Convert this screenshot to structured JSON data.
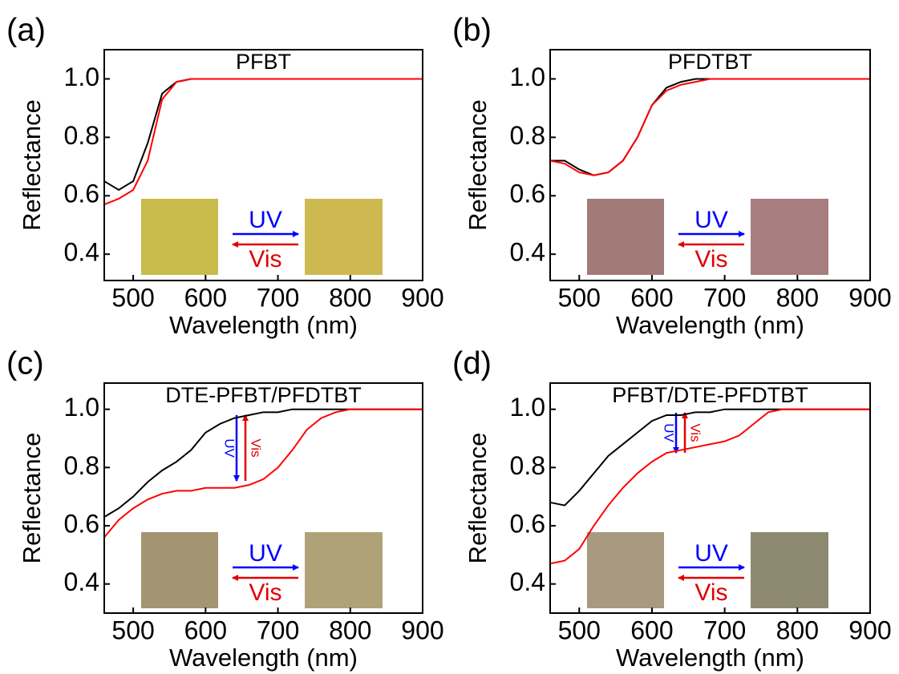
{
  "chart_data": [
    {
      "type": "line",
      "panel": "(a)",
      "title": "PFBT",
      "xlabel": "Wavelength (nm)",
      "ylabel": "Reflectance",
      "x": [
        460,
        480,
        500,
        520,
        540,
        560,
        580,
        600,
        620,
        640,
        660,
        680,
        700,
        720,
        740,
        760,
        780,
        800,
        820,
        840,
        860,
        880,
        900
      ],
      "series": [
        {
          "color": "#000000",
          "values": [
            0.65,
            0.62,
            0.65,
            0.78,
            0.95,
            0.99,
            1.0,
            1.0,
            1.0,
            1.0,
            1.0,
            1.0,
            1.0,
            1.0,
            1.0,
            1.0,
            1.0,
            1.0,
            1.0,
            1.0,
            1.0,
            1.0,
            1.0
          ]
        },
        {
          "color": "#ff0000",
          "values": [
            0.57,
            0.59,
            0.62,
            0.72,
            0.93,
            0.99,
            1.0,
            1.0,
            1.0,
            1.0,
            1.0,
            1.0,
            1.0,
            1.0,
            1.0,
            1.0,
            1.0,
            1.0,
            1.0,
            1.0,
            1.0,
            1.0,
            1.0
          ]
        }
      ],
      "xlim": [
        460,
        900
      ],
      "xticks": [
        500,
        600,
        700,
        800,
        900
      ],
      "ylim": [
        0.31,
        1.1
      ],
      "yticks": [
        0.4,
        0.6,
        0.8,
        {
          "value": 1,
          "label": "1.0"
        }
      ],
      "annotations": [
        "UV",
        "Vis"
      ]
    },
    {
      "type": "line",
      "panel": "(b)",
      "title": "PFDTBT",
      "xlabel": "Wavelength (nm)",
      "ylabel": "Reflectance",
      "x": [
        460,
        480,
        500,
        520,
        540,
        560,
        580,
        600,
        620,
        640,
        660,
        680,
        700,
        720,
        740,
        760,
        780,
        800,
        820,
        840,
        860,
        880,
        900
      ],
      "series": [
        {
          "color": "#000000",
          "values": [
            0.72,
            0.72,
            0.69,
            0.67,
            0.68,
            0.72,
            0.8,
            0.91,
            0.97,
            0.99,
            1.0,
            1.0,
            1.0,
            1.0,
            1.0,
            1.0,
            1.0,
            1.0,
            1.0,
            1.0,
            1.0,
            1.0,
            1.0
          ]
        },
        {
          "color": "#ff0000",
          "values": [
            0.72,
            0.71,
            0.68,
            0.67,
            0.68,
            0.72,
            0.8,
            0.91,
            0.96,
            0.98,
            0.99,
            1.0,
            1.0,
            1.0,
            1.0,
            1.0,
            1.0,
            1.0,
            1.0,
            1.0,
            1.0,
            1.0,
            1.0
          ]
        }
      ],
      "xlim": [
        460,
        900
      ],
      "xticks": [
        500,
        600,
        700,
        800,
        900
      ],
      "ylim": [
        0.31,
        1.1
      ],
      "yticks": [
        0.4,
        0.6,
        0.8,
        {
          "value": 1,
          "label": "1.0"
        }
      ],
      "annotations": [
        "UV",
        "Vis"
      ]
    },
    {
      "type": "line",
      "panel": "(c)",
      "title": "DTE-PFBT/PFDTBT",
      "xlabel": "Wavelength (nm)",
      "ylabel": "Reflectance",
      "x": [
        460,
        480,
        500,
        520,
        540,
        560,
        580,
        600,
        620,
        640,
        660,
        680,
        700,
        720,
        740,
        760,
        780,
        800,
        820,
        840,
        860,
        880,
        900
      ],
      "series": [
        {
          "color": "#000000",
          "values": [
            0.63,
            0.66,
            0.7,
            0.75,
            0.79,
            0.82,
            0.86,
            0.92,
            0.95,
            0.97,
            0.98,
            0.99,
            0.99,
            1.0,
            1.0,
            1.0,
            1.0,
            1.0,
            1.0,
            1.0,
            1.0,
            1.0,
            1.0
          ]
        },
        {
          "color": "#ff0000",
          "values": [
            0.56,
            0.62,
            0.66,
            0.69,
            0.71,
            0.72,
            0.72,
            0.73,
            0.73,
            0.73,
            0.74,
            0.76,
            0.8,
            0.86,
            0.93,
            0.97,
            0.99,
            1.0,
            1.0,
            1.0,
            1.0,
            1.0,
            1.0
          ]
        }
      ],
      "xlim": [
        460,
        900
      ],
      "xticks": [
        500,
        600,
        700,
        800,
        900
      ],
      "ylim": [
        0.3,
        1.09
      ],
      "yticks": [
        0.4,
        0.6,
        0.8,
        {
          "value": 1,
          "label": "1.0"
        }
      ],
      "annotations": [
        "UV",
        "Vis",
        "UV",
        "Vis"
      ]
    },
    {
      "type": "line",
      "panel": "(d)",
      "title": "PFBT/DTE-PFDTBT",
      "xlabel": "Wavelength (nm)",
      "ylabel": "Reflectance",
      "x": [
        460,
        480,
        500,
        520,
        540,
        560,
        580,
        600,
        620,
        640,
        660,
        680,
        700,
        720,
        740,
        760,
        780,
        800,
        820,
        840,
        860,
        880,
        900
      ],
      "series": [
        {
          "color": "#000000",
          "values": [
            0.68,
            0.67,
            0.72,
            0.78,
            0.84,
            0.88,
            0.92,
            0.96,
            0.98,
            0.98,
            0.99,
            0.99,
            1.0,
            1.0,
            1.0,
            1.0,
            1.0,
            1.0,
            1.0,
            1.0,
            1.0,
            1.0,
            1.0
          ]
        },
        {
          "color": "#ff0000",
          "values": [
            0.47,
            0.48,
            0.52,
            0.6,
            0.67,
            0.73,
            0.78,
            0.82,
            0.85,
            0.86,
            0.87,
            0.88,
            0.89,
            0.91,
            0.95,
            0.99,
            1.0,
            1.0,
            1.0,
            1.0,
            1.0,
            1.0,
            1.0
          ]
        }
      ],
      "xlim": [
        460,
        900
      ],
      "xticks": [
        500,
        600,
        700,
        800,
        900
      ],
      "ylim": [
        0.3,
        1.09
      ],
      "yticks": [
        0.4,
        0.6,
        0.8,
        {
          "value": 1,
          "label": "1.0"
        }
      ],
      "annotations": [
        "UV",
        "Vis",
        "UV",
        "Vis"
      ]
    }
  ]
}
